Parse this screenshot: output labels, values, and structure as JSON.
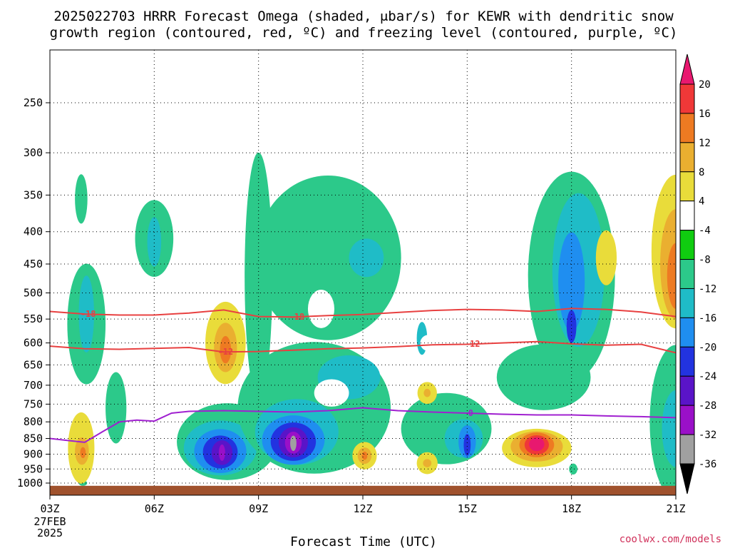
{
  "title": {
    "line1": "2025022703 HRRR Forecast Omega (shaded, μbar/s) for KEWR with dendritic snow",
    "line2": "growth region (contoured, red, ºC) and freezing level (contoured, purple, ºC)"
  },
  "credit": "coolwx.com/models",
  "chart_data": {
    "type": "heatmap",
    "xlabel": "Forecast Time (UTC)",
    "ylabel": "",
    "x_ticks": [
      {
        "hour": 0,
        "label": "03Z",
        "sub": [
          "27FEB",
          "2025"
        ]
      },
      {
        "hour": 3,
        "label": "06Z"
      },
      {
        "hour": 6,
        "label": "09Z"
      },
      {
        "hour": 9,
        "label": "12Z"
      },
      {
        "hour": 12,
        "label": "15Z"
      },
      {
        "hour": 15,
        "label": "18Z"
      },
      {
        "hour": 18,
        "label": "21Z"
      }
    ],
    "xlim": [
      0,
      18
    ],
    "y_scale": "log-pressure",
    "ylim": [
      1010,
      200
    ],
    "y_ticks": [
      250,
      300,
      350,
      400,
      450,
      500,
      550,
      600,
      650,
      700,
      750,
      800,
      850,
      900,
      950,
      1000
    ],
    "grid": true,
    "colorbar": {
      "ticks": [
        20,
        16,
        12,
        8,
        4,
        -4,
        -8,
        -12,
        -16,
        -20,
        -24,
        -28,
        -32,
        -36
      ],
      "levels": [
        {
          "min": 20,
          "max": 24,
          "color": "#e8186f"
        },
        {
          "min": 16,
          "max": 20,
          "color": "#f03838"
        },
        {
          "min": 12,
          "max": 16,
          "color": "#ee7a22"
        },
        {
          "min": 8,
          "max": 12,
          "color": "#eaaf30"
        },
        {
          "min": 4,
          "max": 8,
          "color": "#e9dc3a"
        },
        {
          "min": -4,
          "max": 4,
          "color": "#ffffff"
        },
        {
          "min": -8,
          "max": -4,
          "color": "#10cc10"
        },
        {
          "min": -12,
          "max": -8,
          "color": "#2cc98a"
        },
        {
          "min": -16,
          "max": -12,
          "color": "#1fbcc7"
        },
        {
          "min": -20,
          "max": -16,
          "color": "#1f8ef0"
        },
        {
          "min": -24,
          "max": -20,
          "color": "#2233e0"
        },
        {
          "min": -28,
          "max": -24,
          "color": "#5a14c8"
        },
        {
          "min": -32,
          "max": -28,
          "color": "#9a10c8"
        },
        {
          "min": -36,
          "max": -32,
          "color": "#a0a0a0"
        },
        {
          "min": -40,
          "max": -36,
          "color": "#000000"
        }
      ]
    },
    "omega_features": [
      {
        "level": -8,
        "cx": 0.9,
        "cp": 355,
        "rx": 0.18,
        "dlp": 0.09
      },
      {
        "level": -8,
        "cx": 1.05,
        "cp": 560,
        "rx": 0.55,
        "dlp": 0.22
      },
      {
        "level": -12,
        "cx": 1.05,
        "cp": 540,
        "rx": 0.22,
        "dlp": 0.14
      },
      {
        "level": -8,
        "cx": 1.9,
        "cp": 760,
        "rx": 0.3,
        "dlp": 0.13
      },
      {
        "level": -8,
        "cx": 3.0,
        "cp": 410,
        "rx": 0.55,
        "dlp": 0.14
      },
      {
        "level": -12,
        "cx": 3.0,
        "cp": 415,
        "rx": 0.2,
        "dlp": 0.09
      },
      {
        "level": -8,
        "cx": 5.1,
        "cp": 860,
        "rx": 1.45,
        "dlp": 0.14
      },
      {
        "level": -12,
        "cx": 4.9,
        "cp": 880,
        "rx": 1.05,
        "dlp": 0.1
      },
      {
        "level": -16,
        "cx": 4.9,
        "cp": 890,
        "rx": 0.75,
        "dlp": 0.08
      },
      {
        "level": -20,
        "cx": 4.9,
        "cp": 893,
        "rx": 0.5,
        "dlp": 0.06
      },
      {
        "level": -24,
        "cx": 4.95,
        "cp": 895,
        "rx": 0.3,
        "dlp": 0.045
      },
      {
        "level": -28,
        "cx": 4.95,
        "cp": 895,
        "rx": 0.09,
        "dlp": 0.03
      },
      {
        "level": -8,
        "cx": 6.0,
        "cp": 470,
        "rx": 0.4,
        "dlp": 0.45
      },
      {
        "level": -8,
        "cx": 8.0,
        "cp": 440,
        "rx": 2.1,
        "dlp": 0.3
      },
      {
        "level": -8,
        "cx": 7.6,
        "cp": 760,
        "rx": 2.2,
        "dlp": 0.24
      },
      {
        "level": -12,
        "cx": 7.1,
        "cp": 830,
        "rx": 1.2,
        "dlp": 0.12
      },
      {
        "level": -16,
        "cx": 7.0,
        "cp": 855,
        "rx": 0.9,
        "dlp": 0.09
      },
      {
        "level": -20,
        "cx": 7.0,
        "cp": 860,
        "rx": 0.65,
        "dlp": 0.07
      },
      {
        "level": -24,
        "cx": 7.0,
        "cp": 862,
        "rx": 0.42,
        "dlp": 0.055
      },
      {
        "level": -28,
        "cx": 7.0,
        "cp": 863,
        "rx": 0.24,
        "dlp": 0.04
      },
      {
        "level": -32,
        "cx": 7.0,
        "cp": 865,
        "rx": 0.09,
        "dlp": 0.028
      },
      {
        "level": -12,
        "cx": 9.1,
        "cp": 440,
        "rx": 0.5,
        "dlp": 0.07
      },
      {
        "level": -12,
        "cx": 8.6,
        "cp": 680,
        "rx": 0.9,
        "dlp": 0.08
      },
      {
        "level": -8,
        "cx": 11.4,
        "cp": 820,
        "rx": 1.3,
        "dlp": 0.13
      },
      {
        "level": -12,
        "cx": 11.9,
        "cp": 850,
        "rx": 0.55,
        "dlp": 0.07
      },
      {
        "level": -16,
        "cx": 12.0,
        "cp": 860,
        "rx": 0.25,
        "dlp": 0.06
      },
      {
        "level": -20,
        "cx": 12.0,
        "cp": 870,
        "rx": 0.1,
        "dlp": 0.04
      },
      {
        "level": -12,
        "cx": 10.7,
        "cp": 590,
        "rx": 0.15,
        "dlp": 0.06
      },
      {
        "level": -8,
        "cx": 15.0,
        "cp": 470,
        "rx": 1.25,
        "dlp": 0.38
      },
      {
        "level": -12,
        "cx": 15.2,
        "cp": 460,
        "rx": 0.75,
        "dlp": 0.28
      },
      {
        "level": -16,
        "cx": 15.0,
        "cp": 480,
        "rx": 0.38,
        "dlp": 0.18
      },
      {
        "level": -20,
        "cx": 15.0,
        "cp": 565,
        "rx": 0.14,
        "dlp": 0.06
      },
      {
        "level": -8,
        "cx": 14.2,
        "cp": 680,
        "rx": 1.35,
        "dlp": 0.12
      },
      {
        "level": -8,
        "cx": 18.0,
        "cp": 800,
        "rx": 0.75,
        "dlp": 0.28
      },
      {
        "level": -12,
        "cx": 18.0,
        "cp": 820,
        "rx": 0.4,
        "dlp": 0.14
      },
      {
        "level": -8,
        "cx": 0.95,
        "cp": 1000,
        "rx": 0.12,
        "dlp": 0.01
      },
      {
        "level": -8,
        "cx": 15.05,
        "cp": 950,
        "rx": 0.12,
        "dlp": 0.02
      }
    ],
    "omega_holes": [
      {
        "cx": 7.8,
        "cp": 530,
        "rx": 0.38,
        "dlp": 0.07
      },
      {
        "cx": 8.1,
        "cp": 720,
        "rx": 0.5,
        "dlp": 0.05
      },
      {
        "cx": 10.9,
        "cp": 600,
        "rx": 0.25,
        "dlp": 0.03
      }
    ],
    "omega_positive": [
      {
        "level": 4,
        "cx": 0.9,
        "cp": 880,
        "rx": 0.38,
        "dlp": 0.13
      },
      {
        "level": 8,
        "cx": 0.92,
        "cp": 890,
        "rx": 0.2,
        "dlp": 0.05
      },
      {
        "level": 12,
        "cx": 0.95,
        "cp": 895,
        "rx": 0.08,
        "dlp": 0.02
      },
      {
        "level": 4,
        "cx": 5.05,
        "cp": 600,
        "rx": 0.58,
        "dlp": 0.15
      },
      {
        "level": 8,
        "cx": 5.05,
        "cp": 610,
        "rx": 0.33,
        "dlp": 0.09
      },
      {
        "level": 12,
        "cx": 5.05,
        "cp": 615,
        "rx": 0.16,
        "dlp": 0.05
      },
      {
        "level": 4,
        "cx": 9.05,
        "cp": 905,
        "rx": 0.35,
        "dlp": 0.05
      },
      {
        "level": 8,
        "cx": 9.05,
        "cp": 905,
        "rx": 0.2,
        "dlp": 0.03
      },
      {
        "level": 12,
        "cx": 9.05,
        "cp": 905,
        "rx": 0.08,
        "dlp": 0.015
      },
      {
        "level": 4,
        "cx": 10.85,
        "cp": 720,
        "rx": 0.28,
        "dlp": 0.04
      },
      {
        "level": 8,
        "cx": 10.85,
        "cp": 720,
        "rx": 0.1,
        "dlp": 0.015
      },
      {
        "level": 4,
        "cx": 10.85,
        "cp": 930,
        "rx": 0.3,
        "dlp": 0.04
      },
      {
        "level": 8,
        "cx": 10.85,
        "cp": 930,
        "rx": 0.12,
        "dlp": 0.015
      },
      {
        "level": 4,
        "cx": 14.0,
        "cp": 880,
        "rx": 1.0,
        "dlp": 0.07
      },
      {
        "level": 8,
        "cx": 14.0,
        "cp": 875,
        "rx": 0.75,
        "dlp": 0.055
      },
      {
        "level": 12,
        "cx": 14.0,
        "cp": 870,
        "rx": 0.5,
        "dlp": 0.045
      },
      {
        "level": 16,
        "cx": 14.0,
        "cp": 870,
        "rx": 0.35,
        "dlp": 0.035
      },
      {
        "level": 20,
        "cx": 14.0,
        "cp": 868,
        "rx": 0.22,
        "dlp": 0.025
      },
      {
        "level": 4,
        "cx": 16.0,
        "cp": 440,
        "rx": 0.3,
        "dlp": 0.1
      },
      {
        "level": 4,
        "cx": 18.0,
        "cp": 430,
        "rx": 0.7,
        "dlp": 0.28
      },
      {
        "level": 8,
        "cx": 18.0,
        "cp": 450,
        "rx": 0.45,
        "dlp": 0.2
      },
      {
        "level": 12,
        "cx": 18.0,
        "cp": 470,
        "rx": 0.25,
        "dlp": 0.12
      }
    ],
    "contours": [
      {
        "name": "-18",
        "color": "#e84040",
        "x": [
          0,
          1,
          2,
          3,
          4,
          5,
          6,
          7,
          8,
          9,
          10,
          11,
          12,
          13,
          14,
          15,
          16,
          17,
          18
        ],
        "p": [
          535,
          540,
          542,
          542,
          538,
          532,
          545,
          546,
          543,
          541,
          537,
          533,
          531,
          532,
          535,
          529,
          531,
          536,
          545
        ],
        "labels": [
          {
            "x": 1.1,
            "text": "-18"
          },
          {
            "x": 7.1,
            "text": "-18"
          }
        ]
      },
      {
        "name": "-12",
        "color": "#e84040",
        "x": [
          0,
          1,
          2,
          3,
          4,
          5,
          6,
          7,
          8,
          9,
          10,
          11,
          12,
          13,
          14,
          15,
          16,
          17,
          18
        ],
        "p": [
          607,
          613,
          614,
          612,
          610,
          620,
          619,
          616,
          613,
          611,
          608,
          604,
          603,
          600,
          597,
          602,
          605,
          603,
          622
        ],
        "labels": [
          {
            "x": 5.05,
            "text": "-12"
          },
          {
            "x": 12.15,
            "text": "-12"
          }
        ]
      },
      {
        "name": "0",
        "color": "#a020d0",
        "x": [
          0,
          0.5,
          1,
          1.5,
          2,
          2.5,
          3,
          3.5,
          4,
          5,
          6,
          7,
          8,
          9,
          10,
          11,
          12,
          13,
          14,
          15,
          16,
          17,
          18
        ],
        "p": [
          850,
          856,
          862,
          830,
          800,
          795,
          798,
          775,
          770,
          768,
          770,
          772,
          768,
          760,
          768,
          772,
          775,
          778,
          780,
          780,
          783,
          785,
          788
        ],
        "labels": [
          {
            "x": 12.1,
            "text": "0"
          }
        ]
      }
    ],
    "ground": {
      "p_top": 1010,
      "color": "#a0522d"
    }
  }
}
